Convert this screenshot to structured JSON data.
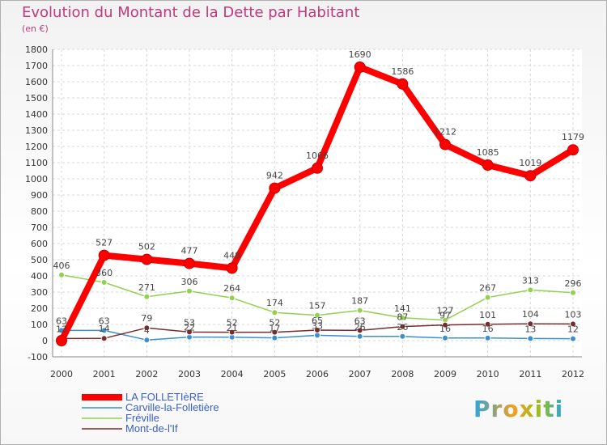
{
  "chart_title": "Evolution du Montant de la Dette par Habitant",
  "chart_subtitle": "(en €)",
  "brand_logo": "Proxiti",
  "chart_data": {
    "type": "line",
    "x": [
      "2000",
      "2001",
      "2002",
      "2003",
      "2004",
      "2005",
      "2006",
      "2007",
      "2008",
      "2009",
      "2010",
      "2011",
      "2012"
    ],
    "ylim": [
      -100,
      1800
    ],
    "yticks": [
      "-100",
      "0",
      "100",
      "200",
      "300",
      "400",
      "500",
      "600",
      "700",
      "800",
      "900",
      "1000",
      "1100",
      "1200",
      "1300",
      "1400",
      "1500",
      "1600",
      "1700",
      "1800"
    ],
    "grid": true,
    "legend_position": "bottom-left",
    "series": [
      {
        "name": "Carville-la-Folletière",
        "color": "#3a8fd0",
        "values": [
          63,
          63,
          4,
          22,
          21,
          17,
          33,
          26,
          26,
          16,
          16,
          13,
          12
        ],
        "labels": [
          "63",
          "63",
          "4",
          "22",
          "21",
          "17",
          "33",
          "26",
          "26",
          "16",
          "16",
          "13",
          "12"
        ]
      },
      {
        "name": "Fréville",
        "color": "#92d050",
        "values": [
          406,
          360,
          271,
          306,
          264,
          174,
          157,
          187,
          141,
          127,
          267,
          313,
          296
        ],
        "labels": [
          "406",
          "360",
          "271",
          "306",
          "264",
          "174",
          "157",
          "187",
          "141",
          "127",
          "267",
          "313",
          "296"
        ]
      },
      {
        "name": "Mont-de-l'If",
        "color": "#7a2c2c",
        "values": [
          13,
          14,
          79,
          53,
          52,
          52,
          65,
          63,
          87,
          97,
          101,
          104,
          103
        ],
        "labels": [
          "13",
          "14",
          "79",
          "53",
          "52",
          "52",
          "65",
          "63",
          "87",
          "97",
          "101",
          "104",
          "103"
        ]
      },
      {
        "name": "LA FOLLETIèRE",
        "color": "#ff0000",
        "values": [
          0,
          527,
          502,
          477,
          448,
          942,
          1066,
          1690,
          1586,
          1212,
          1085,
          1019,
          1179
        ],
        "labels": [
          "",
          "527",
          "502",
          "477",
          "448",
          "942",
          "1066",
          "1690",
          "1586",
          "1212",
          "1085",
          "1019",
          "1179"
        ]
      }
    ]
  }
}
